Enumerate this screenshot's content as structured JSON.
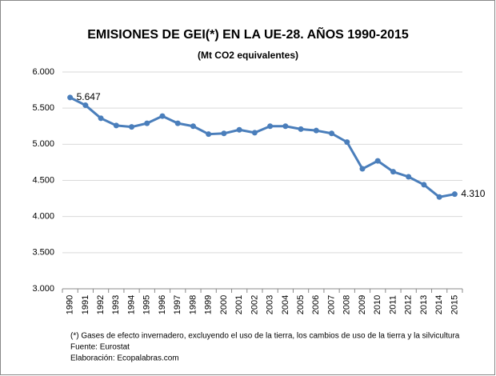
{
  "chart_data": {
    "type": "line",
    "title": "EMISIONES DE GEI(*) EN LA UE-28. AÑOS 1990-2015",
    "subtitle": "(Mt CO2 equivalentes)",
    "categories": [
      "1990",
      "1991",
      "1992",
      "1993",
      "1994",
      "1995",
      "1996",
      "1997",
      "1998",
      "1999",
      "2000",
      "2001",
      "2002",
      "2003",
      "2004",
      "2005",
      "2006",
      "2007",
      "2008",
      "2009",
      "2010",
      "2011",
      "2012",
      "2013",
      "2014",
      "2015"
    ],
    "values": [
      5647,
      5540,
      5360,
      5260,
      5240,
      5290,
      5390,
      5290,
      5250,
      5140,
      5150,
      5200,
      5160,
      5250,
      5250,
      5210,
      5190,
      5150,
      5030,
      4660,
      4770,
      4620,
      4550,
      4440,
      4270,
      4310
    ],
    "value_labels": [
      "5.647",
      null,
      null,
      null,
      null,
      null,
      null,
      null,
      null,
      null,
      null,
      null,
      null,
      null,
      null,
      null,
      null,
      null,
      null,
      null,
      null,
      null,
      null,
      null,
      null,
      "4.310"
    ],
    "color": "#4a7ebb",
    "ylim": [
      3000,
      6000
    ],
    "yticks": [
      {
        "value": 3000,
        "label": "3.000"
      },
      {
        "value": 3500,
        "label": "3.500"
      },
      {
        "value": 4000,
        "label": "4.000"
      },
      {
        "value": 4500,
        "label": "4.500"
      },
      {
        "value": 5000,
        "label": "5.000"
      },
      {
        "value": 5500,
        "label": "5.500"
      },
      {
        "value": 6000,
        "label": "6.000"
      }
    ],
    "grid": true,
    "footnotes": [
      "(*) Gases de efecto invernadero, excluyendo el uso de la tierra, los cambios de uso de la tierra y la silvicultura",
      "Fuente: Eurostat",
      "Elaboración: Ecopalabras.com"
    ]
  }
}
